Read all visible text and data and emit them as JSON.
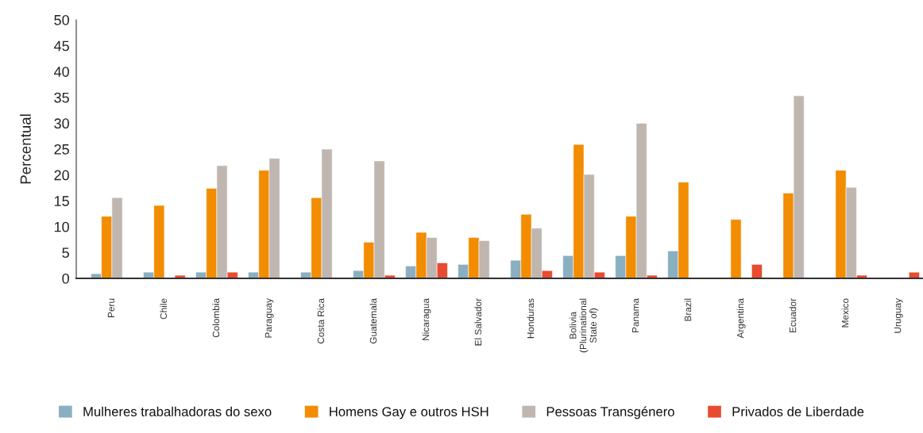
{
  "chart_data": {
    "type": "bar",
    "ylabel": "Percentual",
    "categories": [
      "Peru",
      "Chile",
      "Colombia",
      "Paraguay",
      "Costa Rica",
      "Guatemala",
      "Nicaragua",
      "El Salvador",
      "Honduras",
      "Bolivia\n(Plurinational\nState of)",
      "Panama",
      "Brazil",
      "Argentina",
      "Ecuador",
      "Mexico",
      "Uruguay"
    ],
    "series": [
      {
        "name": "Mulheres trabalhadoras do sexo",
        "color": "#8aafc0",
        "values": [
          0.9,
          1.2,
          1.2,
          1.2,
          1.2,
          1.5,
          2.4,
          2.7,
          3.5,
          4.4,
          4.4,
          5.3,
          null,
          null,
          null,
          null
        ]
      },
      {
        "name": "Homens Gay e outros HSH",
        "color": "#f28c00",
        "values": [
          12.0,
          14.1,
          17.4,
          20.9,
          15.6,
          7.0,
          8.9,
          7.9,
          12.4,
          25.9,
          12.0,
          18.6,
          11.4,
          16.5,
          20.9,
          null
        ]
      },
      {
        "name": "Pessoas Transgénero",
        "color": "#bfb6b0",
        "values": [
          15.6,
          null,
          21.8,
          23.2,
          25.0,
          22.7,
          7.9,
          7.3,
          9.7,
          20.1,
          30.0,
          null,
          null,
          35.3,
          17.6,
          null
        ]
      },
      {
        "name": "Privados de Liberdade",
        "color": "#e84c30",
        "values": [
          null,
          0.6,
          1.2,
          null,
          null,
          0.6,
          3.0,
          null,
          1.5,
          1.2,
          0.6,
          null,
          2.7,
          null,
          0.6,
          1.2
        ]
      }
    ],
    "ylim": [
      0,
      50
    ],
    "yticks": [
      0,
      5,
      10,
      15,
      20,
      25,
      30,
      35,
      40,
      45,
      50
    ],
    "grid": false,
    "legend": "bottom"
  }
}
